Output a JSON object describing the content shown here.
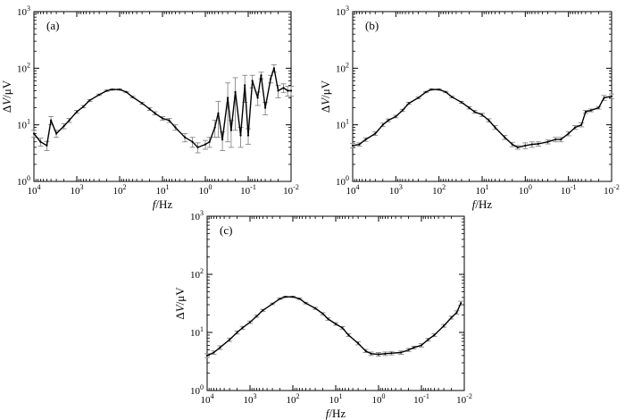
{
  "figure": {
    "panels_label": [
      "(a)",
      "(b)",
      "(c)"
    ]
  },
  "chart_data": [
    {
      "type": "line",
      "panel_label": "(a)",
      "xlabel_italic": "f",
      "xlabel_unit": "/Hz",
      "ylabel_main": "ΔV",
      "ylabel_unit": "/μV",
      "xscale": "log",
      "yscale": "log",
      "x_direction": "decreasing",
      "xlim": [
        10000,
        0.01
      ],
      "ylim": [
        1,
        1000
      ],
      "xticks": [
        "10^4",
        "10^3",
        "10^2",
        "10^1",
        "10^0",
        "10^-1",
        "10^-2"
      ],
      "yticks": [
        "10^0",
        "10^1",
        "10^2",
        "10^3"
      ],
      "error_bars": true,
      "grid": false,
      "series": [
        {
          "x": [
            10000,
            7000,
            5000,
            4000,
            3000,
            2000,
            1500,
            1000,
            700,
            500,
            300,
            200,
            150,
            100,
            70,
            50,
            30,
            20,
            15,
            10,
            7,
            5,
            3,
            2,
            1.5,
            1,
            0.8,
            0.6,
            0.5,
            0.4,
            0.3,
            0.25,
            0.2,
            0.15,
            0.12,
            0.1,
            0.08,
            0.06,
            0.05,
            0.04,
            0.03,
            0.025,
            0.02,
            0.015,
            0.012,
            0.01
          ],
          "y": [
            7,
            5,
            4.3,
            12,
            7,
            9.5,
            12,
            17,
            21,
            27,
            34,
            40,
            42,
            42,
            38,
            31,
            24,
            19,
            16,
            13,
            12,
            9,
            6,
            5,
            4,
            4.5,
            5,
            9,
            16,
            5.5,
            30,
            8,
            38,
            6.5,
            50,
            6.5,
            60,
            30,
            75,
            20,
            65,
            100,
            40,
            45,
            40,
            40
          ],
          "err": [
            1,
            0.8,
            0.8,
            2,
            1,
            1,
            1,
            1,
            1,
            1,
            1,
            1,
            1,
            1,
            1,
            1,
            1,
            1,
            1,
            1,
            1,
            1,
            1,
            1,
            0.8,
            0.8,
            1,
            3,
            10,
            2,
            25,
            4,
            30,
            2.5,
            25,
            2,
            15,
            8,
            10,
            5,
            10,
            15,
            10,
            8,
            8,
            8
          ]
        }
      ]
    },
    {
      "type": "line",
      "panel_label": "(b)",
      "xlabel_italic": "f",
      "xlabel_unit": "/Hz",
      "ylabel_main": "ΔV",
      "ylabel_unit": "/μV",
      "xscale": "log",
      "yscale": "log",
      "x_direction": "decreasing",
      "xlim": [
        10000,
        0.01
      ],
      "ylim": [
        1,
        1000
      ],
      "xticks": [
        "10^4",
        "10^3",
        "10^2",
        "10^1",
        "10^0",
        "10^-1",
        "10^-2"
      ],
      "yticks": [
        "10^0",
        "10^1",
        "10^2",
        "10^3"
      ],
      "error_bars": true,
      "grid": false,
      "series": [
        {
          "x": [
            10000,
            7000,
            5000,
            3000,
            2000,
            1500,
            1000,
            700,
            500,
            300,
            200,
            150,
            100,
            70,
            50,
            30,
            20,
            15,
            10,
            7,
            5,
            3,
            2,
            1.5,
            1,
            0.7,
            0.5,
            0.3,
            0.2,
            0.15,
            0.1,
            0.07,
            0.05,
            0.04,
            0.03,
            0.02,
            0.015,
            0.01
          ],
          "y": [
            4.3,
            4.5,
            5.5,
            7,
            10,
            12,
            14,
            18,
            24,
            30,
            38,
            42,
            42,
            38,
            31,
            25,
            20,
            17,
            15,
            12,
            9,
            6,
            4.5,
            4,
            4.3,
            4.5,
            4.6,
            5,
            5.5,
            5.5,
            7,
            9,
            10,
            17,
            18,
            20,
            30,
            32
          ],
          "err": [
            0.4,
            0.3,
            0.4,
            0.5,
            0.7,
            0.7,
            0.7,
            0.8,
            1,
            1,
            1,
            1,
            1,
            1,
            1,
            1,
            1,
            1,
            1,
            0.8,
            0.7,
            0.5,
            0.4,
            0.3,
            0.5,
            0.5,
            0.4,
            0.4,
            0.5,
            0.5,
            0.6,
            0.7,
            0.8,
            1,
            1,
            1,
            3,
            3
          ]
        }
      ]
    },
    {
      "type": "line",
      "panel_label": "(c)",
      "xlabel_italic": "f",
      "xlabel_unit": "/Hz",
      "ylabel_main": "ΔV",
      "ylabel_unit": "/μV",
      "xscale": "log",
      "yscale": "log",
      "x_direction": "decreasing",
      "xlim": [
        10000,
        0.01
      ],
      "ylim": [
        1,
        1000
      ],
      "xticks": [
        "10^4",
        "10^3",
        "10^2",
        "10^1",
        "10^0",
        "10^-1",
        "10^-2"
      ],
      "yticks": [
        "10^0",
        "10^1",
        "10^2",
        "10^3"
      ],
      "error_bars": true,
      "grid": false,
      "series": [
        {
          "x": [
            10000,
            7000,
            5000,
            3000,
            2000,
            1500,
            1000,
            700,
            500,
            300,
            200,
            150,
            100,
            70,
            50,
            30,
            20,
            15,
            10,
            7,
            5,
            3,
            2,
            1.5,
            1,
            0.7,
            0.5,
            0.3,
            0.2,
            0.15,
            0.1,
            0.07,
            0.05,
            0.03,
            0.02,
            0.015,
            0.012
          ],
          "y": [
            4,
            4.5,
            5.5,
            7.5,
            10,
            12,
            15,
            19,
            24,
            31,
            38,
            41,
            41,
            38,
            32,
            26,
            21,
            17,
            14,
            12,
            9,
            6.5,
            4.8,
            4.3,
            4.2,
            4.3,
            4.4,
            4.5,
            5,
            5.5,
            6,
            7.5,
            9,
            13,
            18,
            22,
            32
          ],
          "err": [
            0.3,
            0.3,
            0.4,
            0.5,
            0.6,
            0.7,
            0.7,
            0.8,
            0.9,
            1,
            1,
            1,
            1,
            1,
            1,
            1,
            0.9,
            0.8,
            0.7,
            0.6,
            0.5,
            0.4,
            0.3,
            0.3,
            0.3,
            0.3,
            0.3,
            0.3,
            0.3,
            0.3,
            0.4,
            0.4,
            0.5,
            0.7,
            1,
            1.5,
            2.5
          ]
        }
      ]
    }
  ]
}
